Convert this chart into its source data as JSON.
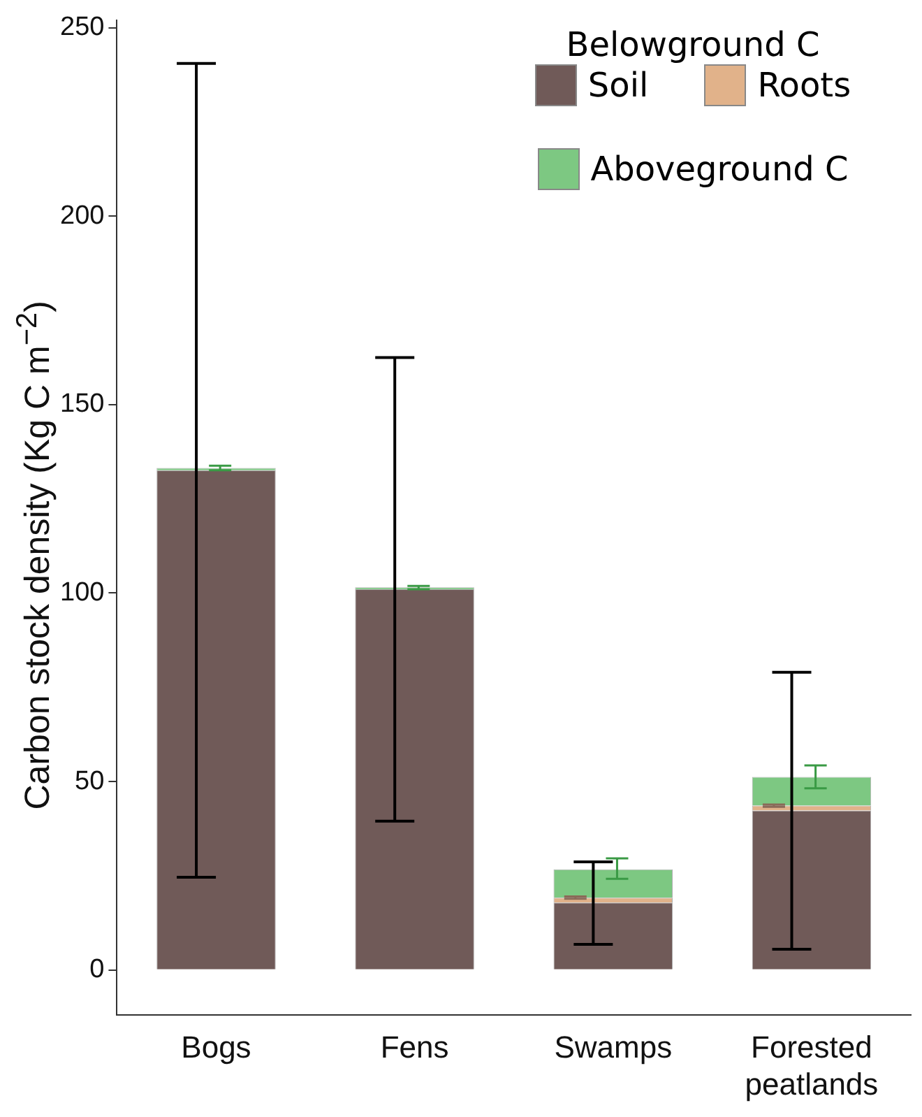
{
  "chart_data": {
    "type": "bar",
    "stacked": true,
    "categories": [
      "Bogs",
      "Fens",
      "Swamps",
      "Forested\npeatlands"
    ],
    "ylabel": "Carbon stock density (Kg C m$^{−2}$)",
    "ylim": [
      -12,
      252
    ],
    "yticks": [
      0,
      50,
      100,
      150,
      200,
      250
    ],
    "grid": false,
    "legend": "top right",
    "legend_title": "Belowground C",
    "series": [
      {
        "name": "Soil",
        "color": "#705a58",
        "values": [
          132.6,
          101,
          17.9,
          42.3
        ],
        "errors": [
          [
            24.6,
            240.5
          ],
          [
            39.5,
            162.5
          ],
          [
            6.8,
            28.7
          ],
          [
            5.5,
            79
          ]
        ]
      },
      {
        "name": "Roots",
        "color": "#e1b28a",
        "values": [
          0,
          0,
          1.3,
          1.3
        ],
        "errors": [
          null,
          null,
          [
            18.9,
            19.5
          ],
          [
            43.3,
            43.9
          ]
        ]
      },
      {
        "name": "Aboveground C",
        "color": "#7dc882",
        "values": [
          0.6,
          0.5,
          7.5,
          7.6
        ],
        "errors": [
          [
            132.6,
            133.8
          ],
          [
            101,
            101.9
          ],
          [
            24.2,
            29.6
          ],
          [
            48.2,
            54.3
          ]
        ]
      }
    ]
  }
}
